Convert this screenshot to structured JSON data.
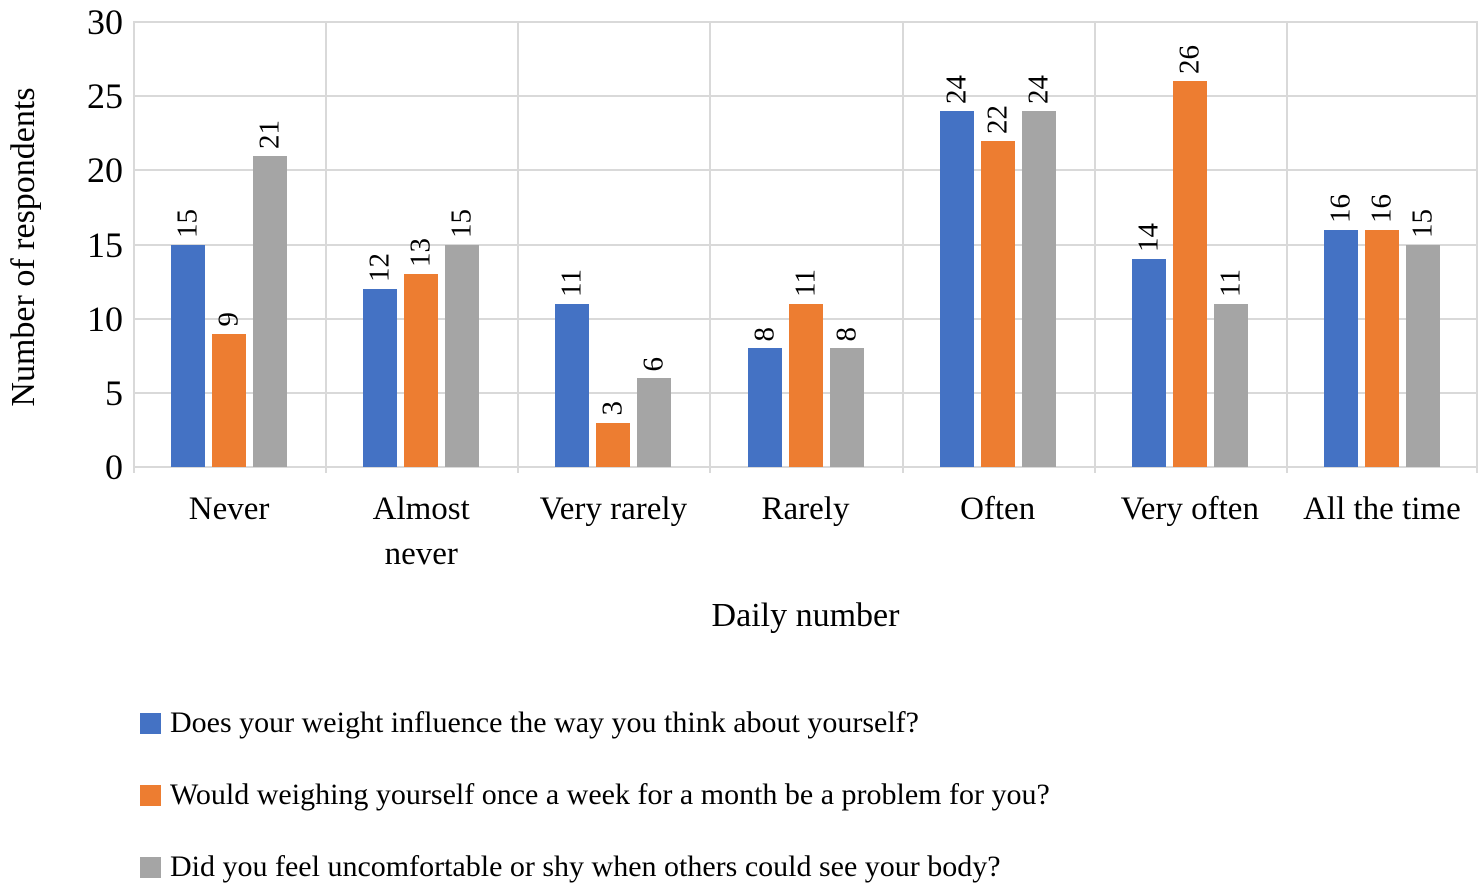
{
  "chart_data": {
    "type": "bar",
    "title": "",
    "xlabel": "Daily number",
    "ylabel": "Number of respondents",
    "categories": [
      "Never",
      "Almost\nnever",
      "Very rarely",
      "Rarely",
      "Often",
      "Very often",
      "All the time"
    ],
    "series": [
      {
        "name": "Does your weight influence the way you think about yourself?",
        "color": "#4472C4",
        "values": [
          15,
          12,
          11,
          8,
          24,
          14,
          16
        ]
      },
      {
        "name": "Would weighing yourself once a week for a month be a problem for you?",
        "color": "#ED7D31",
        "values": [
          9,
          13,
          3,
          11,
          22,
          26,
          16
        ]
      },
      {
        "name": "Did you feel uncomfortable or shy when others could see your body?",
        "color": "#A5A5A5",
        "values": [
          21,
          15,
          6,
          8,
          24,
          11,
          15
        ]
      }
    ],
    "ylim": [
      0,
      30
    ],
    "yticks": [
      0,
      5,
      10,
      15,
      20,
      25,
      30
    ],
    "grid": true,
    "gridline_color": "#D9D9D9",
    "text_color": "#000000",
    "legend_position": "bottom",
    "data_labels": "rotated-90-above-bars"
  }
}
